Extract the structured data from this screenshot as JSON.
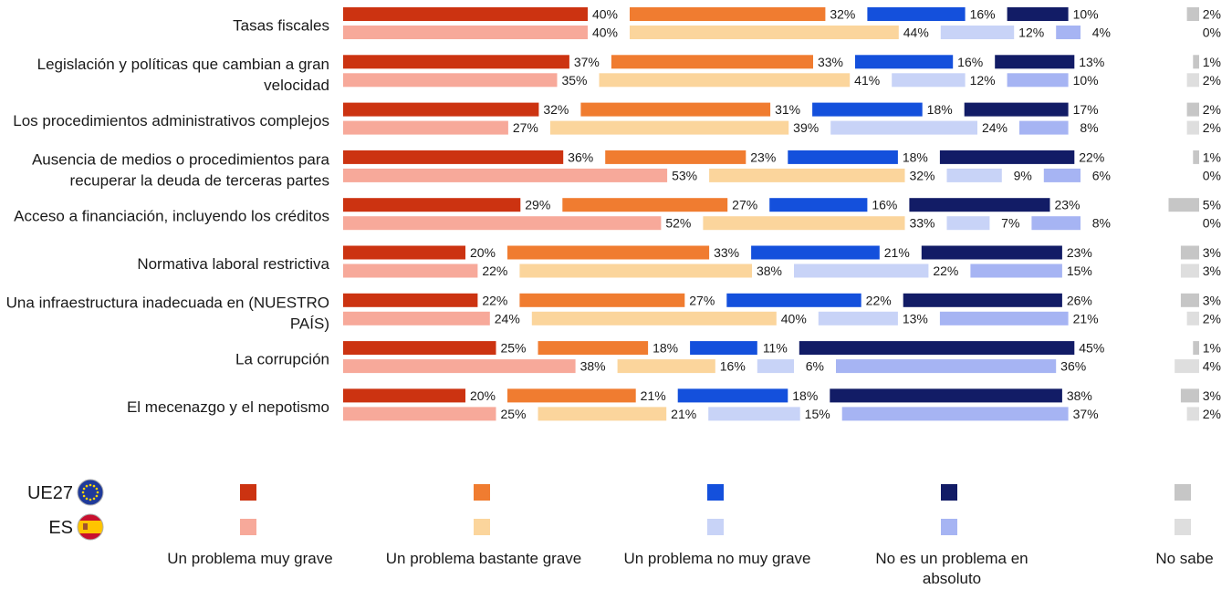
{
  "chart_data": {
    "type": "bar",
    "orientation": "horizontal",
    "stacking": "segmented-with-gaps",
    "categories": [
      "Tasas fiscales",
      "Legislación y políticas que cambian a gran velocidad",
      "Los procedimientos administrativos complejos",
      "Ausencia de medios o procedimientos para recuperar la deuda de terceras partes",
      "Acceso a financiación, incluyendo los créditos",
      "Normativa laboral restrictiva",
      "Una infraestructura inadecuada en (NUESTRO PAÍS)",
      "La corrupción",
      "El mecenazgo y el nepotismo"
    ],
    "category_lines": [
      [
        "Tasas fiscales"
      ],
      [
        "Legislación y políticas que cambian a gran",
        "velocidad"
      ],
      [
        "Los procedimientos administrativos complejos"
      ],
      [
        "Ausencia de medios o procedimientos para",
        "recuperar la deuda de terceras partes"
      ],
      [
        "Acceso a financiación, incluyendo los créditos"
      ],
      [
        "Normativa laboral restrictiva"
      ],
      [
        "Una infraestructura inadecuada en (NUESTRO",
        "PAÍS)"
      ],
      [
        "La corrupción"
      ],
      [
        "El mecenazgo y el nepotismo"
      ]
    ],
    "responses": [
      "Un problema muy grave",
      "Un problema bastante grave",
      "Un problema no muy grave",
      "No es un problema en absoluto",
      "No sabe"
    ],
    "responses_lines": [
      [
        "Un problema muy grave"
      ],
      [
        "Un problema bastante grave"
      ],
      [
        "Un problema no muy grave"
      ],
      [
        "No es un problema en",
        "absoluto"
      ],
      [
        "No sabe"
      ]
    ],
    "series": [
      {
        "name": "UE27",
        "colors": [
          "#cc3311",
          "#f07c30",
          "#1450dc",
          "#121c66",
          "#c6c6c6"
        ],
        "values": [
          [
            40,
            32,
            16,
            10,
            2
          ],
          [
            37,
            33,
            16,
            13,
            1
          ],
          [
            32,
            31,
            18,
            17,
            2
          ],
          [
            36,
            23,
            18,
            22,
            1
          ],
          [
            29,
            27,
            16,
            23,
            5
          ],
          [
            20,
            33,
            21,
            23,
            3
          ],
          [
            22,
            27,
            22,
            26,
            3
          ],
          [
            25,
            18,
            11,
            45,
            1
          ],
          [
            20,
            21,
            18,
            38,
            3
          ]
        ]
      },
      {
        "name": "ES",
        "colors": [
          "#f7a99a",
          "#fbd59c",
          "#c8d3f7",
          "#a6b4f3",
          "#dedede"
        ],
        "values": [
          [
            40,
            44,
            12,
            4,
            0
          ],
          [
            35,
            41,
            12,
            10,
            2
          ],
          [
            27,
            39,
            24,
            8,
            2
          ],
          [
            53,
            32,
            9,
            6,
            0
          ],
          [
            52,
            33,
            7,
            8,
            0
          ],
          [
            22,
            38,
            22,
            15,
            3
          ],
          [
            24,
            40,
            13,
            21,
            2
          ],
          [
            38,
            16,
            6,
            36,
            4
          ],
          [
            25,
            21,
            15,
            37,
            2
          ]
        ]
      }
    ],
    "value_suffix": "%",
    "legend_placement": "bottom"
  }
}
